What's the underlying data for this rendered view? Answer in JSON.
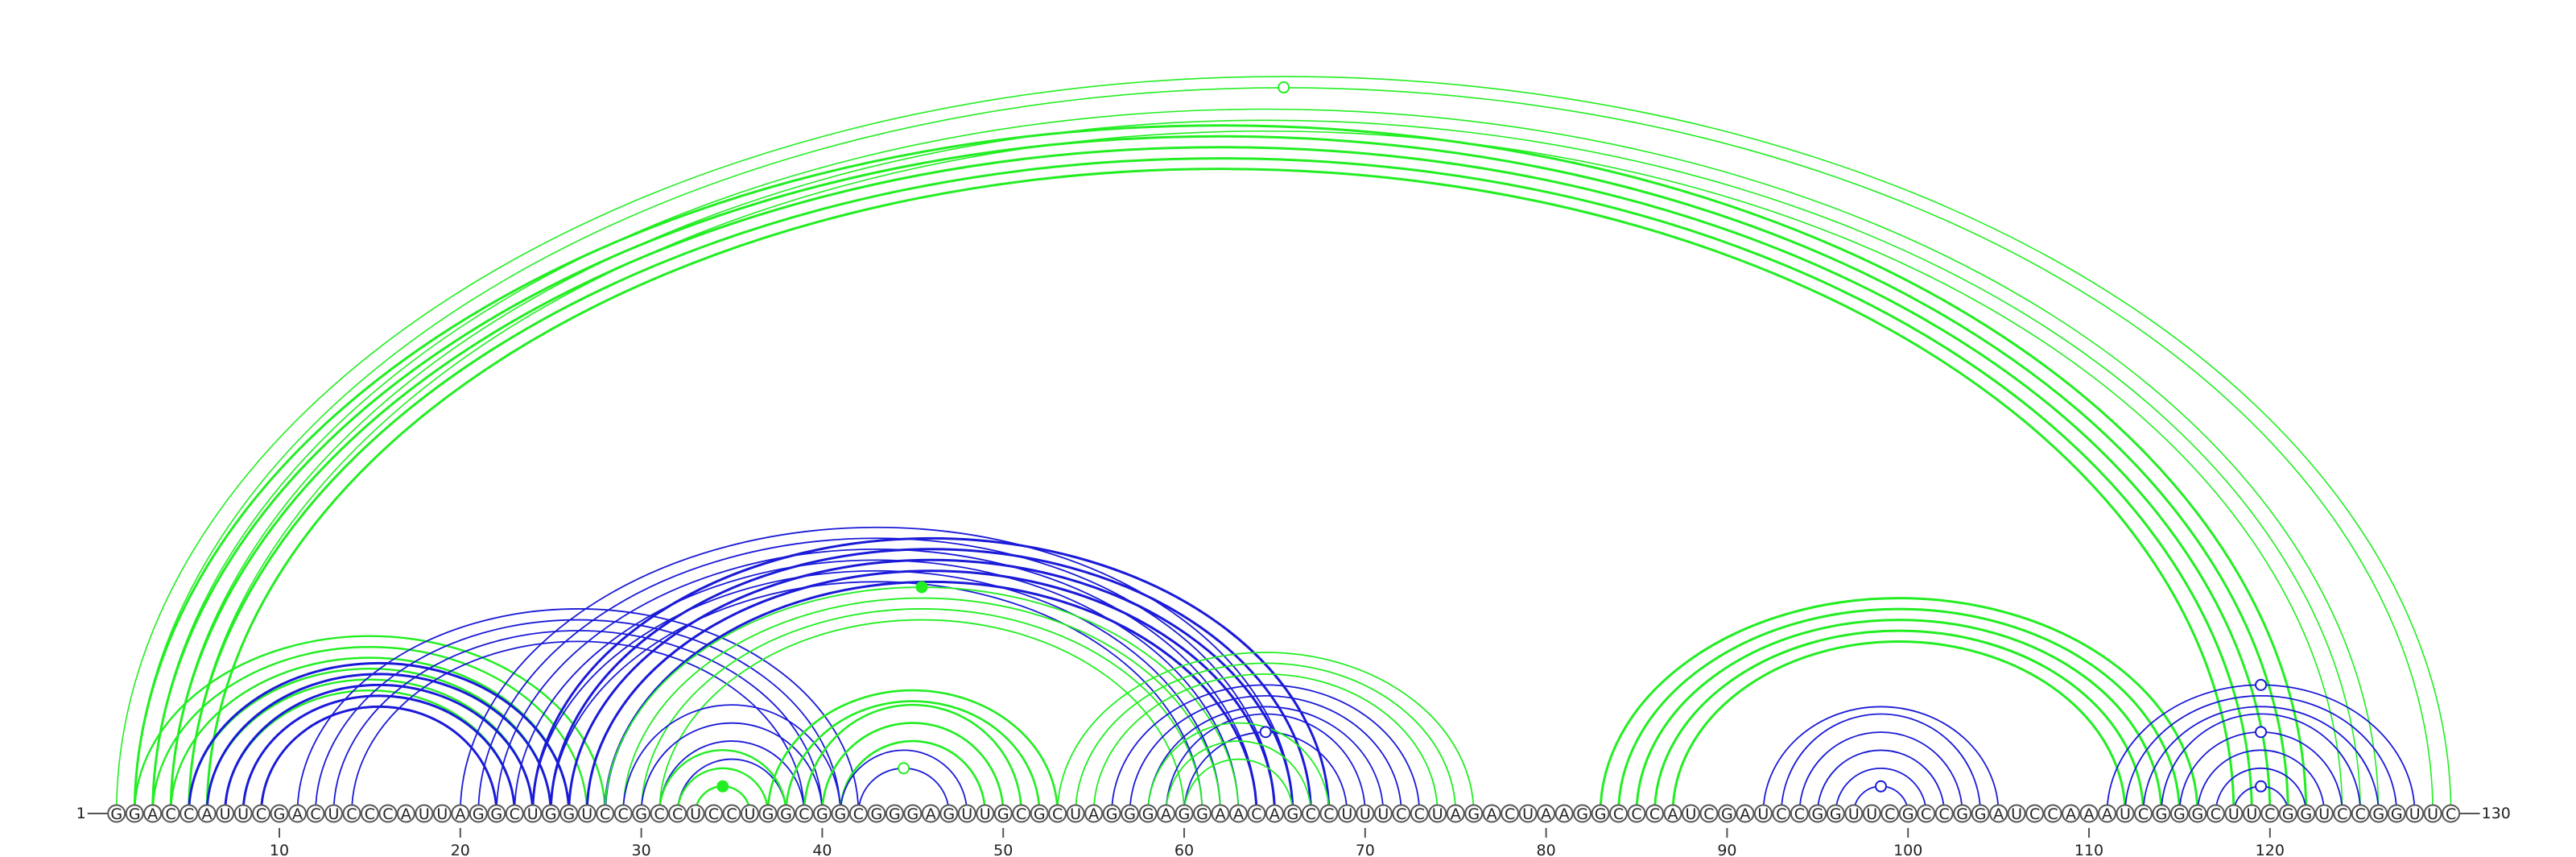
{
  "diagram": {
    "type": "rna-arc-diagram",
    "sequence": "GGACCAUUCGACUCCCAUUAGGCUGGUCCGCCUCCUGGCGGCGGGAGUUGCGCUAGGGAGGAACAGCCUUUCCUAGACUAAGGCCCAUCGAUCCGGUUCGCCGGAUCCAAAUCGGGCUUCGGUCCGGUUC",
    "start_label": "1",
    "end_label": "130",
    "ticks": [
      10,
      20,
      30,
      40,
      50,
      60,
      70,
      80,
      90,
      100,
      110,
      120
    ],
    "colors": {
      "green": "#22ee22",
      "blue": "#1a1ad8"
    },
    "arc_groups": [
      {
        "color": "green",
        "width": 3,
        "pairs": [
          [
            2,
            122
          ],
          [
            3,
            121
          ],
          [
            4,
            120
          ],
          [
            5,
            119
          ],
          [
            6,
            118
          ]
        ]
      },
      {
        "color": "green",
        "width": 1.6,
        "pairs": [
          [
            1,
            130
          ],
          [
            2,
            129
          ],
          [
            3,
            126
          ],
          [
            4,
            125
          ],
          [
            5,
            124
          ]
        ]
      },
      {
        "color": "green",
        "width": 2.4,
        "pairs": [
          [
            2,
            28
          ],
          [
            3,
            27
          ],
          [
            4,
            26
          ],
          [
            5,
            25
          ],
          [
            6,
            24
          ],
          [
            7,
            23
          ]
        ]
      },
      {
        "color": "blue",
        "width": 3,
        "pairs": [
          [
            5,
            26
          ],
          [
            6,
            25
          ],
          [
            7,
            24
          ],
          [
            8,
            23
          ],
          [
            9,
            22
          ]
        ]
      },
      {
        "color": "blue",
        "width": 1.8,
        "pairs": [
          [
            11,
            42
          ],
          [
            12,
            41
          ],
          [
            13,
            40
          ],
          [
            14,
            39
          ]
        ]
      },
      {
        "color": "blue",
        "width": 1.8,
        "pairs": [
          [
            20,
            66
          ],
          [
            21,
            65
          ],
          [
            22,
            64
          ],
          [
            23,
            63
          ],
          [
            24,
            62
          ],
          [
            25,
            61
          ]
        ]
      },
      {
        "color": "blue",
        "width": 3,
        "pairs": [
          [
            24,
            68
          ],
          [
            25,
            67
          ],
          [
            26,
            66
          ],
          [
            27,
            65
          ],
          [
            28,
            64
          ]
        ]
      },
      {
        "color": "green",
        "width": 1.8,
        "pairs": [
          [
            28,
            63
          ],
          [
            29,
            62
          ],
          [
            30,
            61
          ],
          [
            31,
            60
          ]
        ]
      },
      {
        "color": "blue",
        "width": 1.8,
        "pairs": [
          [
            29,
            41
          ],
          [
            30,
            40
          ],
          [
            31,
            39
          ],
          [
            32,
            38
          ]
        ]
      },
      {
        "color": "green",
        "width": 2.4,
        "pairs": [
          [
            31,
            38
          ],
          [
            32,
            37
          ],
          [
            33,
            36
          ]
        ]
      },
      {
        "color": "green",
        "width": 2.6,
        "pairs": [
          [
            37,
            53
          ],
          [
            38,
            52
          ],
          [
            39,
            51
          ],
          [
            40,
            50
          ],
          [
            41,
            49
          ]
        ]
      },
      {
        "color": "blue",
        "width": 1.8,
        "pairs": [
          [
            41,
            48
          ],
          [
            42,
            47
          ]
        ]
      },
      {
        "color": "green",
        "width": 1.8,
        "pairs": [
          [
            53,
            76
          ],
          [
            54,
            75
          ],
          [
            55,
            74
          ]
        ]
      },
      {
        "color": "blue",
        "width": 1.8,
        "pairs": [
          [
            56,
            73
          ],
          [
            57,
            72
          ],
          [
            58,
            71
          ],
          [
            59,
            70
          ],
          [
            60,
            69
          ]
        ]
      },
      {
        "color": "green",
        "width": 1.8,
        "pairs": [
          [
            58,
            68
          ],
          [
            59,
            67
          ],
          [
            60,
            66
          ]
        ]
      },
      {
        "color": "green",
        "width": 3,
        "pairs": [
          [
            83,
            116
          ],
          [
            84,
            115
          ],
          [
            85,
            114
          ],
          [
            86,
            113
          ],
          [
            87,
            112
          ]
        ]
      },
      {
        "color": "blue",
        "width": 1.8,
        "pairs": [
          [
            92,
            105
          ],
          [
            93,
            104
          ],
          [
            94,
            103
          ],
          [
            95,
            102
          ],
          [
            96,
            101
          ],
          [
            97,
            100
          ]
        ]
      },
      {
        "color": "blue",
        "width": 1.8,
        "pairs": [
          [
            111,
            128
          ],
          [
            112,
            127
          ],
          [
            113,
            126
          ],
          [
            114,
            125
          ],
          [
            115,
            124
          ]
        ]
      },
      {
        "color": "blue",
        "width": 1.8,
        "pairs": [
          [
            116,
            123
          ],
          [
            117,
            122
          ],
          [
            118,
            121
          ]
        ]
      }
    ],
    "markers": [
      {
        "pair": [
          2,
          129
        ],
        "color": "green",
        "filled": false
      },
      {
        "pair": [
          28,
          63
        ],
        "color": "green",
        "filled": true
      },
      {
        "pair": [
          33,
          36
        ],
        "color": "green",
        "filled": true
      },
      {
        "pair": [
          42,
          47
        ],
        "color": "green",
        "filled": false
      },
      {
        "pair": [
          60,
          69
        ],
        "color": "blue",
        "filled": false
      },
      {
        "pair": [
          97,
          100
        ],
        "color": "blue",
        "filled": false
      },
      {
        "pair": [
          111,
          128
        ],
        "color": "blue",
        "filled": false
      },
      {
        "pair": [
          115,
          124
        ],
        "color": "blue",
        "filled": false
      },
      {
        "pair": [
          118,
          121
        ],
        "color": "blue",
        "filled": false
      }
    ]
  }
}
